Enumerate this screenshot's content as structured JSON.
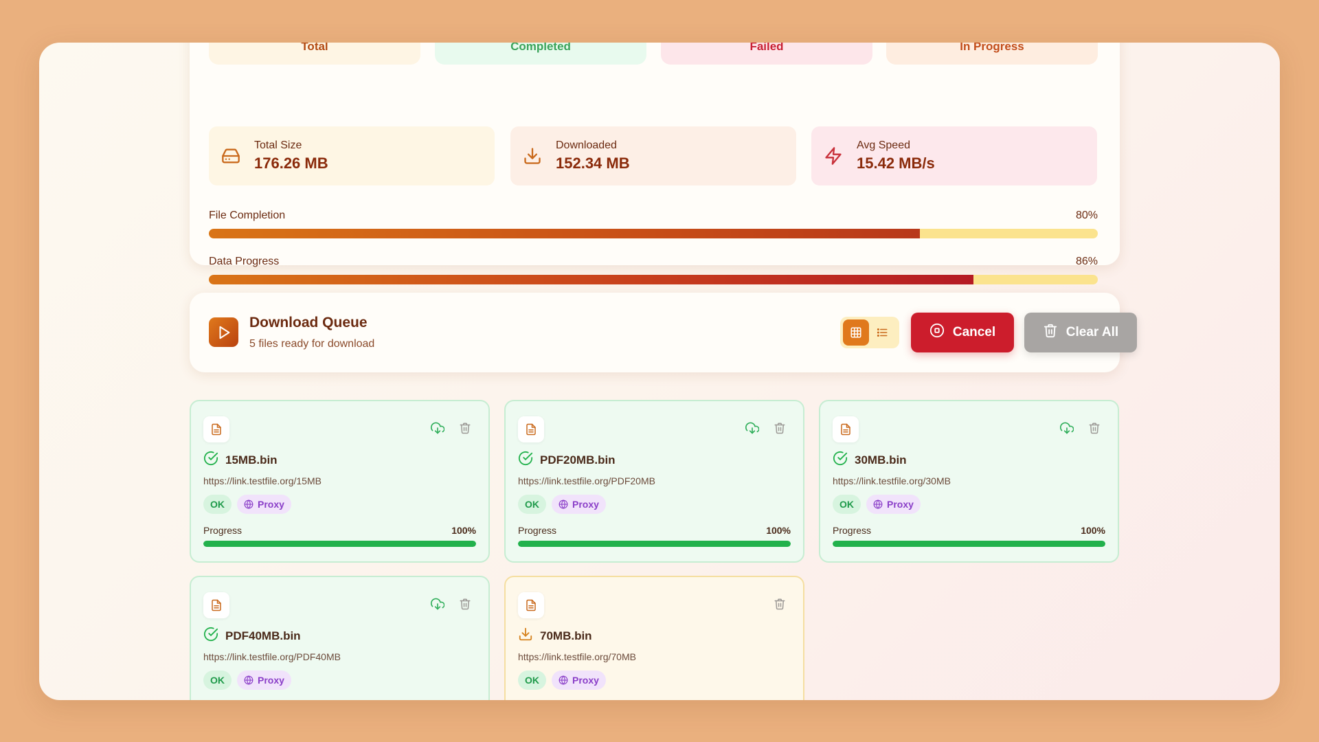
{
  "status_tiles": [
    {
      "label": "Total",
      "bg": "#fef5e4",
      "color": "#b34a12"
    },
    {
      "label": "Completed",
      "bg": "#e8faee",
      "color": "#3aa35a"
    },
    {
      "label": "Failed",
      "bg": "#fde6ea",
      "color": "#c82034"
    },
    {
      "label": "In Progress",
      "bg": "#feede0",
      "color": "#c24d1a"
    }
  ],
  "metrics": [
    {
      "label": "Total Size",
      "value": "176.26 MB",
      "icon": "hard-drive-icon",
      "bg": "#fef6e4"
    },
    {
      "label": "Downloaded",
      "value": "152.34 MB",
      "icon": "download-icon",
      "bg": "#fdefe6"
    },
    {
      "label": "Avg Speed",
      "value": "15.42 MB/s",
      "icon": "lightning-icon",
      "bg": "#fde8ec"
    }
  ],
  "file_completion": {
    "label": "File Completion",
    "percent_text": "80%",
    "percent": 80
  },
  "data_progress": {
    "label": "Data Progress",
    "percent_text": "86%",
    "percent": 86
  },
  "queue": {
    "title": "Download Queue",
    "subtitle": "5 files ready for download",
    "cancel_label": "Cancel",
    "clear_label": "Clear All",
    "view_mode": "grid"
  },
  "files": [
    {
      "name": "15MB.bin",
      "url": "https://link.testfile.org/15MB",
      "status_tag": "OK",
      "proxy_tag": "Proxy",
      "progress_label": "Progress",
      "progress_text": "100%",
      "progress": 100,
      "state": "completed"
    },
    {
      "name": "PDF20MB.bin",
      "url": "https://link.testfile.org/PDF20MB",
      "status_tag": "OK",
      "proxy_tag": "Proxy",
      "progress_label": "Progress",
      "progress_text": "100%",
      "progress": 100,
      "state": "completed"
    },
    {
      "name": "30MB.bin",
      "url": "https://link.testfile.org/30MB",
      "status_tag": "OK",
      "proxy_tag": "Proxy",
      "progress_label": "Progress",
      "progress_text": "100%",
      "progress": 100,
      "state": "completed"
    },
    {
      "name": "PDF40MB.bin",
      "url": "https://link.testfile.org/PDF40MB",
      "status_tag": "OK",
      "proxy_tag": "Proxy",
      "state": "completed"
    },
    {
      "name": "70MB.bin",
      "url": "https://link.testfile.org/70MB",
      "status_tag": "OK",
      "proxy_tag": "Proxy",
      "state": "downloading"
    }
  ],
  "colors": {
    "accent": "#e0791c",
    "danger": "#cc1d2c",
    "success": "#22b14c",
    "bar_track": "#fbe38e"
  }
}
